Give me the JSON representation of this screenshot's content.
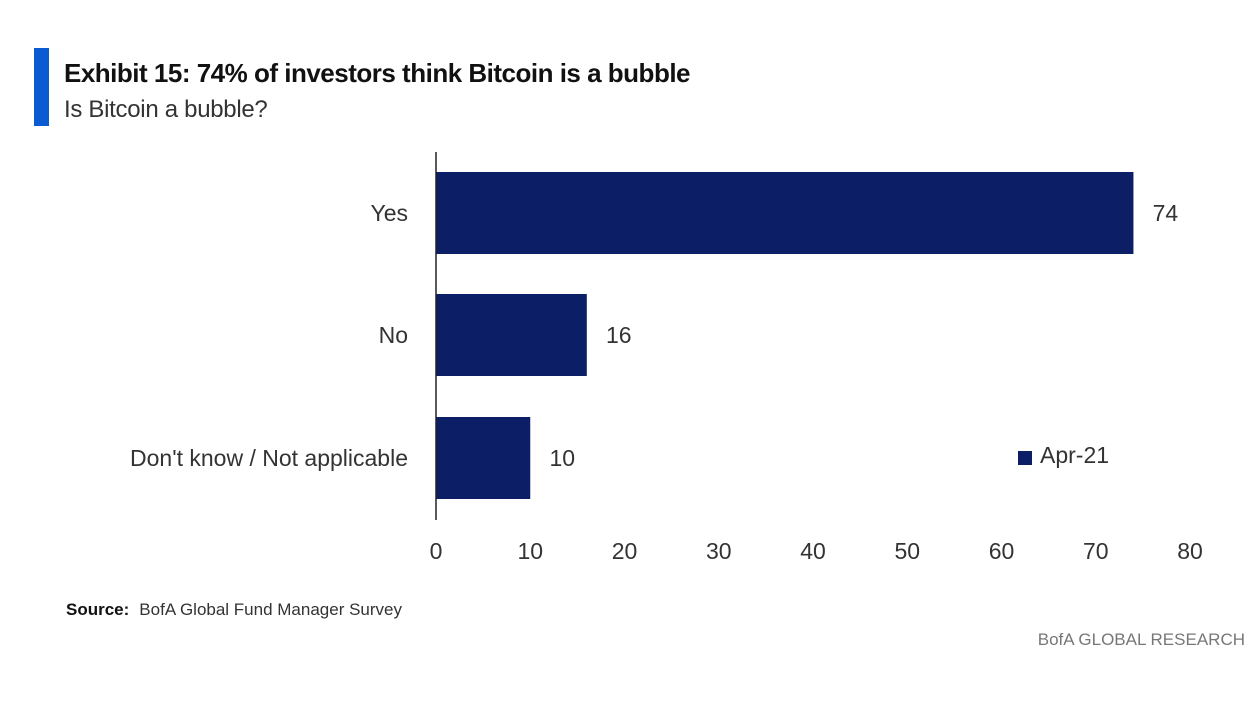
{
  "header": {
    "title": "Exhibit 15: 74% of investors think Bitcoin is a bubble",
    "subtitle": "Is Bitcoin a bubble?"
  },
  "chart_data": {
    "type": "bar",
    "orientation": "horizontal",
    "categories": [
      "Yes",
      "No",
      "Don't know / Not applicable"
    ],
    "series": [
      {
        "name": "Apr-21",
        "values": [
          74,
          16,
          10
        ],
        "color": "#0c1f66"
      }
    ],
    "xlim": [
      0,
      80
    ],
    "xticks": [
      0,
      10,
      20,
      30,
      40,
      50,
      60,
      70,
      80
    ],
    "grid": false,
    "legend_position": "bottom-right",
    "data_labels": true
  },
  "footer": {
    "source_label": "Source:",
    "source_text": "BofA Global Fund Manager Survey",
    "brand": "BofA GLOBAL RESEARCH"
  }
}
